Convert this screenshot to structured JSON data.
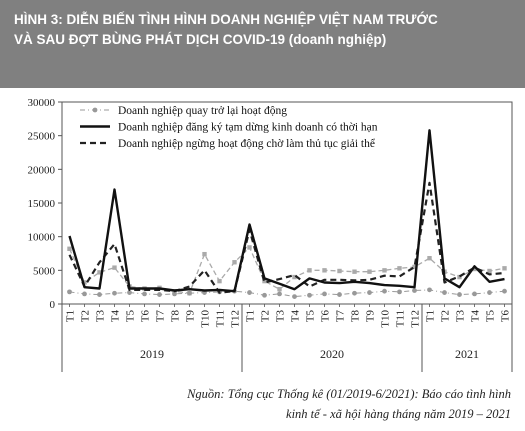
{
  "header": {
    "line1": "HÌNH 3: DIỄN BIẾN TÌNH HÌNH DOANH NGHIỆP VIỆT NAM TRƯỚC",
    "line2": "VÀ SAU ĐỢT BÙNG PHÁT DỊCH COVID-19 (doanh nghiệp)"
  },
  "source": {
    "line1": "Nguồn: Tổng cục Thống kê (01/2019-6/2021): Báo cáo tình hình",
    "line2": "kinh tế - xã hội hàng tháng năm 2019 – 2021"
  },
  "chart_data": {
    "type": "line",
    "title": "",
    "xlabel": "",
    "ylabel": "",
    "ylim": [
      0,
      30000
    ],
    "yticks": [
      0,
      5000,
      10000,
      15000,
      20000,
      25000,
      30000
    ],
    "grid": false,
    "legend_position": "top-left",
    "categories": [
      "T1",
      "T2",
      "T3",
      "T4",
      "T5",
      "T6",
      "T7",
      "T8",
      "T9",
      "T10",
      "T11",
      "T12",
      "T1",
      "T2",
      "T3",
      "T4",
      "T5",
      "T6",
      "T7",
      "T8",
      "T9",
      "T10",
      "T11",
      "T12",
      "T1",
      "T2",
      "T3",
      "T4",
      "T5",
      "T6"
    ],
    "groups": [
      {
        "label": "2019",
        "start": 0,
        "end": 11
      },
      {
        "label": "2020",
        "start": 12,
        "end": 23
      },
      {
        "label": "2021",
        "start": 24,
        "end": 29
      }
    ],
    "series": [
      {
        "name": "Doanh nghiệp quay trở lại hoạt động",
        "style": "dash-dot-light",
        "color": "#999999",
        "values": [
          1800,
          1500,
          1400,
          1600,
          1700,
          1500,
          1400,
          1500,
          1600,
          1700,
          1800,
          1900,
          1700,
          1300,
          1500,
          1100,
          1300,
          1500,
          1400,
          1600,
          1700,
          1900,
          1800,
          2000,
          2100,
          1700,
          1400,
          1500,
          1700,
          1900
        ]
      },
      {
        "name": "Doanh nghiệp đăng ký tạm dừng kinh doanh có thời hạn",
        "style": "solid-bold",
        "color": "#111111",
        "values": [
          10100,
          2500,
          2300,
          17000,
          2300,
          2300,
          2300,
          2000,
          2200,
          2000,
          2100,
          1900,
          11800,
          3800,
          3000,
          2200,
          3800,
          3200,
          3100,
          3300,
          3100,
          2800,
          2700,
          2500,
          25800,
          3800,
          2500,
          5600,
          3300,
          3700
        ]
      },
      {
        "name": "Doanh nghiệp ngừng hoạt động chờ làm thủ tục giải thể",
        "style": "dashed-bold",
        "color": "#222222",
        "values": [
          7300,
          2600,
          6200,
          8900,
          2100,
          2100,
          2100,
          1900,
          2600,
          5000,
          1700,
          1900,
          11000,
          3200,
          3700,
          4300,
          2600,
          3600,
          3600,
          3500,
          3600,
          4200,
          4100,
          5500,
          18000,
          3200,
          4100,
          5400,
          4400,
          4600
        ]
      },
      {
        "name": "",
        "style": "dashed-light",
        "color": "#aaaaaa",
        "values": [
          8200,
          3200,
          4700,
          5400,
          2600,
          2300,
          2400,
          1900,
          1600,
          7400,
          3400,
          6200,
          8400,
          3400,
          2200,
          4000,
          5000,
          5000,
          4900,
          4800,
          4800,
          5000,
          5300,
          5500,
          6800,
          4800,
          4000,
          5200,
          4900,
          5300
        ]
      }
    ]
  }
}
